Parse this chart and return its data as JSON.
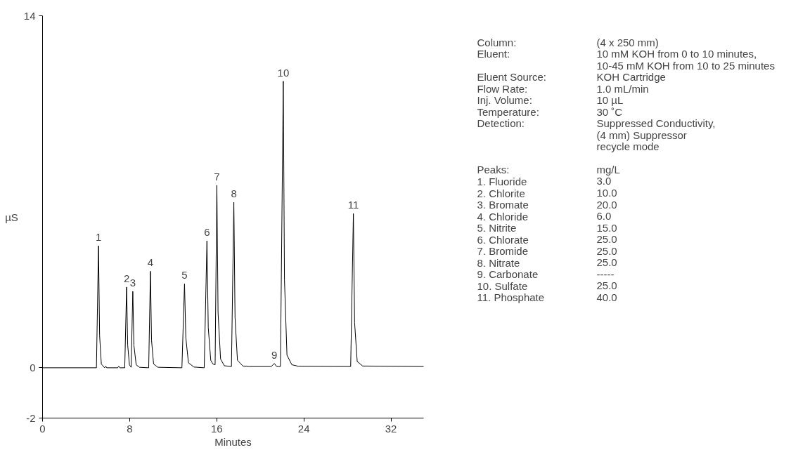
{
  "chart_data": {
    "type": "line",
    "xlabel": "Minutes",
    "ylabel": "µS",
    "xlim": [
      0,
      35
    ],
    "xticks": [
      0,
      8,
      16,
      24,
      32
    ],
    "ylim": [
      -2,
      14
    ],
    "yticks": [
      -2,
      0,
      14
    ],
    "grid": false,
    "marker": "none",
    "line_style": "solid",
    "series": [
      {
        "color": "#000000",
        "x": [
          0,
          4.95,
          5.14,
          5.24,
          5.4,
          5.7,
          5.8,
          5.9,
          6.9,
          7.0,
          7.1,
          7.55,
          7.72,
          7.82,
          7.98,
          8.14,
          8.29,
          8.39,
          8.6,
          8.9,
          9.75,
          9.91,
          10.01,
          10.2,
          10.6,
          12.8,
          13.04,
          13.16,
          13.4,
          13.9,
          14.85,
          15.1,
          15.22,
          15.45,
          15.65,
          15.85,
          16.01,
          16.12,
          16.35,
          16.7,
          17.35,
          17.57,
          17.68,
          17.9,
          18.4,
          19.0,
          21.0,
          21.29,
          21.5,
          21.85,
          22.11,
          22.22,
          22.45,
          22.9,
          23.5,
          28.3,
          28.55,
          28.66,
          28.9,
          29.4,
          35
        ],
        "values": [
          0,
          0,
          4.85,
          1.3,
          0.15,
          0,
          0.06,
          0,
          0,
          0.06,
          0,
          0,
          3.21,
          0.9,
          0.12,
          0.02,
          3.04,
          0.9,
          0.12,
          0.02,
          0,
          3.84,
          1.1,
          0.15,
          0.02,
          0,
          3.34,
          1.2,
          0.2,
          0.03,
          0,
          5.05,
          1.6,
          0.3,
          0.15,
          0.12,
          7.26,
          2.2,
          0.35,
          0.08,
          0.05,
          6.58,
          2.0,
          0.3,
          0.07,
          0.05,
          0.05,
          0.17,
          0.05,
          0.05,
          11.4,
          3.5,
          0.5,
          0.12,
          0.06,
          0.05,
          6.13,
          1.8,
          0.25,
          0.07,
          0.05
        ]
      }
    ],
    "annotations": [
      {
        "text": "1",
        "x": 5.14,
        "y": 4.85
      },
      {
        "text": "2",
        "x": 7.72,
        "y": 3.21
      },
      {
        "text": "3",
        "x": 8.29,
        "y": 3.04
      },
      {
        "text": "4",
        "x": 9.91,
        "y": 3.84
      },
      {
        "text": "5",
        "x": 13.04,
        "y": 3.34
      },
      {
        "text": "6",
        "x": 15.1,
        "y": 5.05
      },
      {
        "text": "7",
        "x": 16.01,
        "y": 7.26
      },
      {
        "text": "8",
        "x": 17.57,
        "y": 6.58
      },
      {
        "text": "9",
        "x": 21.29,
        "y": 0.17
      },
      {
        "text": "10",
        "x": 22.11,
        "y": 11.4
      },
      {
        "text": "11",
        "x": 28.55,
        "y": 6.13
      },
      "Column:",
      "(4 x 250 mm)",
      "Eluent:",
      "10 mM KOH from 0 to 10 minutes,\n10-45 mM KOH from 10 to 25 minutes",
      "Eluent Source:",
      "KOH Cartridge",
      "Flow Rate:",
      "1.0 mL/min",
      "Inj. Volume:",
      "10 µL",
      "Temperature:",
      "30 ˚C",
      "Detection:",
      "Suppressed Conductivity,\n(4 mm) Suppressor\nrecycle mode\n",
      "Peaks:",
      "mg/L",
      "1.  Fluoride",
      "3.0",
      "2.  Chlorite",
      "10.0",
      "3.  Bromate",
      "20.0",
      "4.  Chloride",
      "6.0",
      "5.  Nitrite",
      "15.0",
      "6.  Chlorate",
      "25.0",
      "7.  Bromide",
      "25.0",
      "8.  Nitrate",
      "25.0",
      "9.  Carbonate",
      "-----",
      "10. Sulfate",
      "25.0",
      "11. Phosphate",
      "40.0"
    ]
  }
}
